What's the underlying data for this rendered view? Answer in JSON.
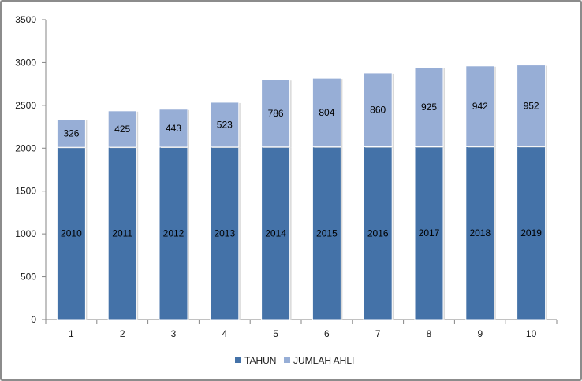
{
  "chart_data": {
    "type": "bar",
    "stacked": true,
    "categories": [
      "1",
      "2",
      "3",
      "4",
      "5",
      "6",
      "7",
      "8",
      "9",
      "10"
    ],
    "series": [
      {
        "name": "TAHUN",
        "values": [
          2010,
          2011,
          2012,
          2013,
          2014,
          2015,
          2016,
          2017,
          2018,
          2019
        ],
        "labels": [
          "2010",
          "2011",
          "2012",
          "2013",
          "2014",
          "2015",
          "2016",
          "2017",
          "2018",
          "2019"
        ],
        "color": "#4472a8"
      },
      {
        "name": "JUMLAH AHLI",
        "values": [
          326,
          425,
          443,
          523,
          786,
          804,
          860,
          925,
          942,
          952
        ],
        "labels": [
          "326",
          "425",
          "443",
          "523",
          "786",
          "804",
          "860",
          "925",
          "942",
          "952"
        ],
        "color": "#97aed6"
      }
    ],
    "yticks": [
      "0",
      "500",
      "1000",
      "1500",
      "2000",
      "2500",
      "3000",
      "3500"
    ],
    "ylim": [
      0,
      3500
    ],
    "grid": false,
    "legend": "bottom"
  }
}
